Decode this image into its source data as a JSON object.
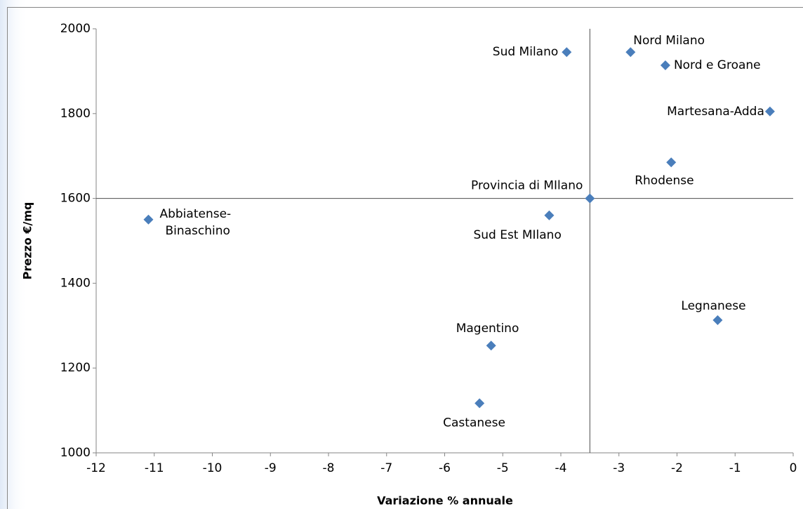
{
  "chart_data": {
    "type": "scatter",
    "x_label": "Variazione % annuale",
    "y_label": "Prezzo €/mq",
    "xlim": [
      -12,
      0
    ],
    "ylim": [
      1000,
      2000
    ],
    "xticks": [
      -12,
      -11,
      -10,
      -9,
      -8,
      -7,
      -6,
      -5,
      -4,
      -3,
      -2,
      -1,
      0
    ],
    "yticks": [
      1000,
      1200,
      1400,
      1600,
      1800,
      2000
    ],
    "grid": false,
    "reference_lines": {
      "x": -3.5,
      "y": 1600
    },
    "series": [
      {
        "name": null,
        "color": "#4a7ebb",
        "point_labels": [
          "Sud Milano",
          "Nord Milano",
          "Nord e Groane",
          "Martesana-Adda",
          "Rhodense",
          "Provincia di MIlano",
          "Sud Est MIlano",
          "Abbiatense-Binaschino",
          "Legnanese",
          "Magentino",
          "Castanese"
        ],
        "x": [
          -3.9,
          -2.8,
          -2.2,
          -0.4,
          -2.1,
          -3.5,
          -4.2,
          -11.1,
          -1.3,
          -5.2,
          -5.4
        ],
        "values": [
          1945,
          1945,
          1914,
          1805,
          1685,
          1600,
          1560,
          1550,
          1313,
          1253,
          1117
        ]
      }
    ]
  }
}
